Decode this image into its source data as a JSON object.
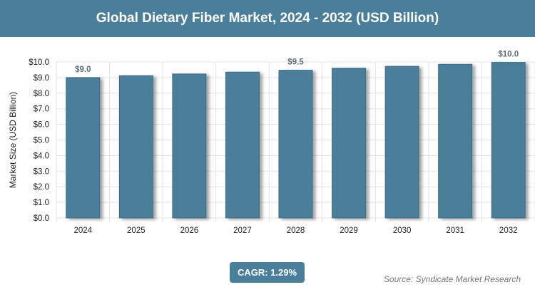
{
  "title": "Global Dietary Fiber Market, 2024 - 2032 (USD Billion)",
  "cagr": "CAGR: 1.29%",
  "source": "Source: Syndicate Market Research",
  "chart_data": {
    "type": "bar",
    "title": "Global Dietary Fiber Market, 2024 - 2032 (USD Billion)",
    "xlabel": "",
    "ylabel": "Market Size (USD Billion)",
    "ylim": [
      0,
      10
    ],
    "yticks": [
      "$0.0",
      "$1.0",
      "$2.0",
      "$3.0",
      "$4.0",
      "$5.0",
      "$6.0",
      "$7.0",
      "$8.0",
      "$9.0",
      "$10.0"
    ],
    "categories": [
      "2024",
      "2025",
      "2026",
      "2027",
      "2028",
      "2029",
      "2030",
      "2031",
      "2032"
    ],
    "values": [
      9.0,
      9.12,
      9.23,
      9.35,
      9.47,
      9.6,
      9.72,
      9.85,
      9.97
    ],
    "data_labels": {
      "0": "$9.0",
      "4": "$9.5",
      "8": "$10.0"
    },
    "grid": true,
    "bar_color": "#4a7f9b"
  }
}
